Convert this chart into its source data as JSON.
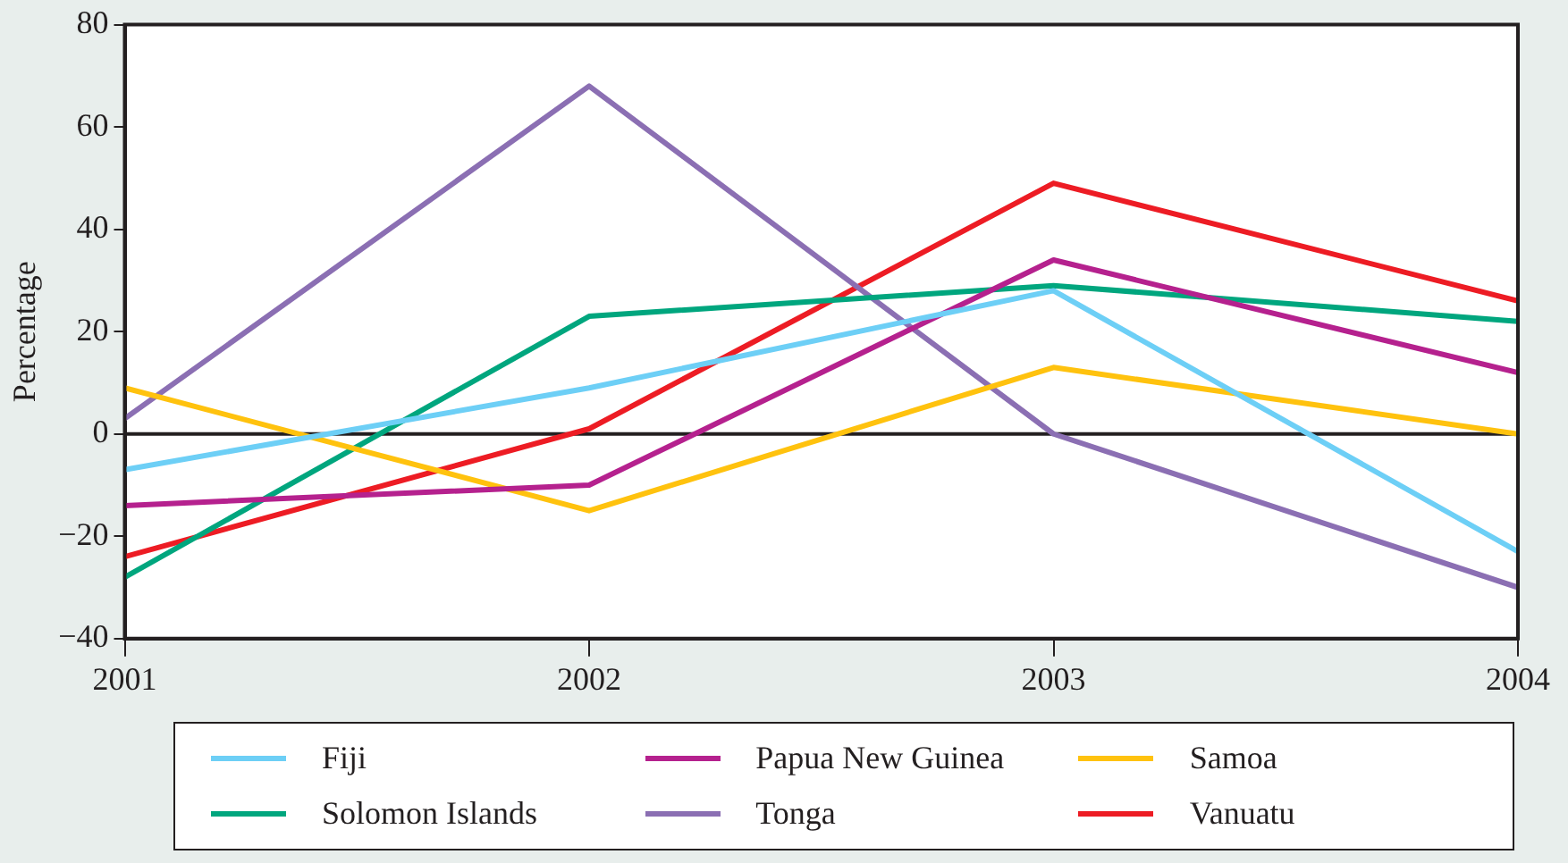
{
  "chart_data": {
    "type": "line",
    "ylabel": "Percentage",
    "x": [
      2001,
      2002,
      2003,
      2004
    ],
    "xlim": [
      2001,
      2004
    ],
    "xticks": [
      2001,
      2002,
      2003,
      2004
    ],
    "ylim": [
      -40,
      80
    ],
    "yticks": [
      -40,
      -20,
      0,
      20,
      40,
      60,
      80
    ],
    "grid": false,
    "legend": "bottom",
    "marker": "none",
    "line_style": "solid",
    "ref_lines": [
      {
        "axis": "y",
        "value": 0,
        "color": "#231f20"
      }
    ],
    "series": [
      {
        "name": "Fiji",
        "color": "#6dcff6",
        "values": [
          -7,
          9,
          28,
          -23
        ]
      },
      {
        "name": "Papua New Guinea",
        "color": "#b5218e",
        "values": [
          -14,
          -10,
          34,
          12
        ]
      },
      {
        "name": "Samoa",
        "color": "#ffc20e",
        "values": [
          9,
          -15,
          13,
          0
        ]
      },
      {
        "name": "Solomon Islands",
        "color": "#00a67e",
        "values": [
          -28,
          23,
          29,
          22
        ]
      },
      {
        "name": "Tonga",
        "color": "#8b6fb3",
        "values": [
          3,
          68,
          0,
          -30
        ]
      },
      {
        "name": "Vanuatu",
        "color": "#ed1c24",
        "values": [
          -24,
          1,
          49,
          26
        ]
      }
    ]
  }
}
